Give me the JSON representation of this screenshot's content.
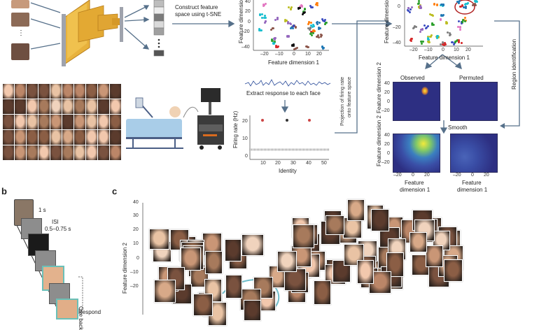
{
  "panel_a": {
    "tsne_label": "Construct feature space using t-SNE",
    "feature_dim_1": "Feature dimension 1",
    "feature_dim_2_trunc": "Feature dimension",
    "tsne_yticks": [
      "40",
      "20",
      "0",
      "–20",
      "–40"
    ],
    "tsne_xticks": [
      "–20",
      "–10",
      "0",
      "10",
      "20"
    ],
    "right_yticks": [
      "0",
      "–20",
      "–40"
    ],
    "right_xticks": [
      "–20",
      "–10",
      "0",
      "10",
      "20"
    ],
    "extract_label": "Extract response to each face",
    "firing_ylabel": "Firing rate (Hz)",
    "firing_xlabel": "Identity",
    "firing_yticks": [
      "20",
      "10",
      "0"
    ],
    "firing_xticks": [
      "10",
      "20",
      "30",
      "40",
      "50"
    ],
    "projection_label_1": "Projection of firing rate",
    "projection_label_2": "onto feature space",
    "region_label": "Region identification",
    "observed": "Observed",
    "permuted": "Permuted",
    "smooth": "Smooth",
    "heat_ylabel": "Feature dimension 2",
    "heat_yticks": [
      "40",
      "20",
      "0",
      "–20"
    ],
    "heat_xticks_obs": [
      "–20",
      "0",
      "20"
    ],
    "heat_xticks_perm": [
      "–20",
      "0",
      "20"
    ],
    "heat_xlabel_1": "Feature",
    "heat_xlabel_2": "dimension 1"
  },
  "panel_b": {
    "letter": "b",
    "t1": "1 s",
    "isi_1": "ISI",
    "isi_2": "0.5–0.75 s",
    "one_back": "One back",
    "respond": "Respond"
  },
  "panel_c": {
    "letter": "c",
    "ylabel": "Feature dimension 2",
    "yticks": [
      "40",
      "30",
      "20",
      "10",
      "0",
      "–10",
      "–20"
    ]
  },
  "colors": {
    "arrow": "#56708a",
    "heat_low": "#2d2f82",
    "heat_high": "#f2ea3b",
    "spike_trace": "#2b4c9a",
    "monitor": "#2b2b2b",
    "bed": "#a9cde8"
  }
}
